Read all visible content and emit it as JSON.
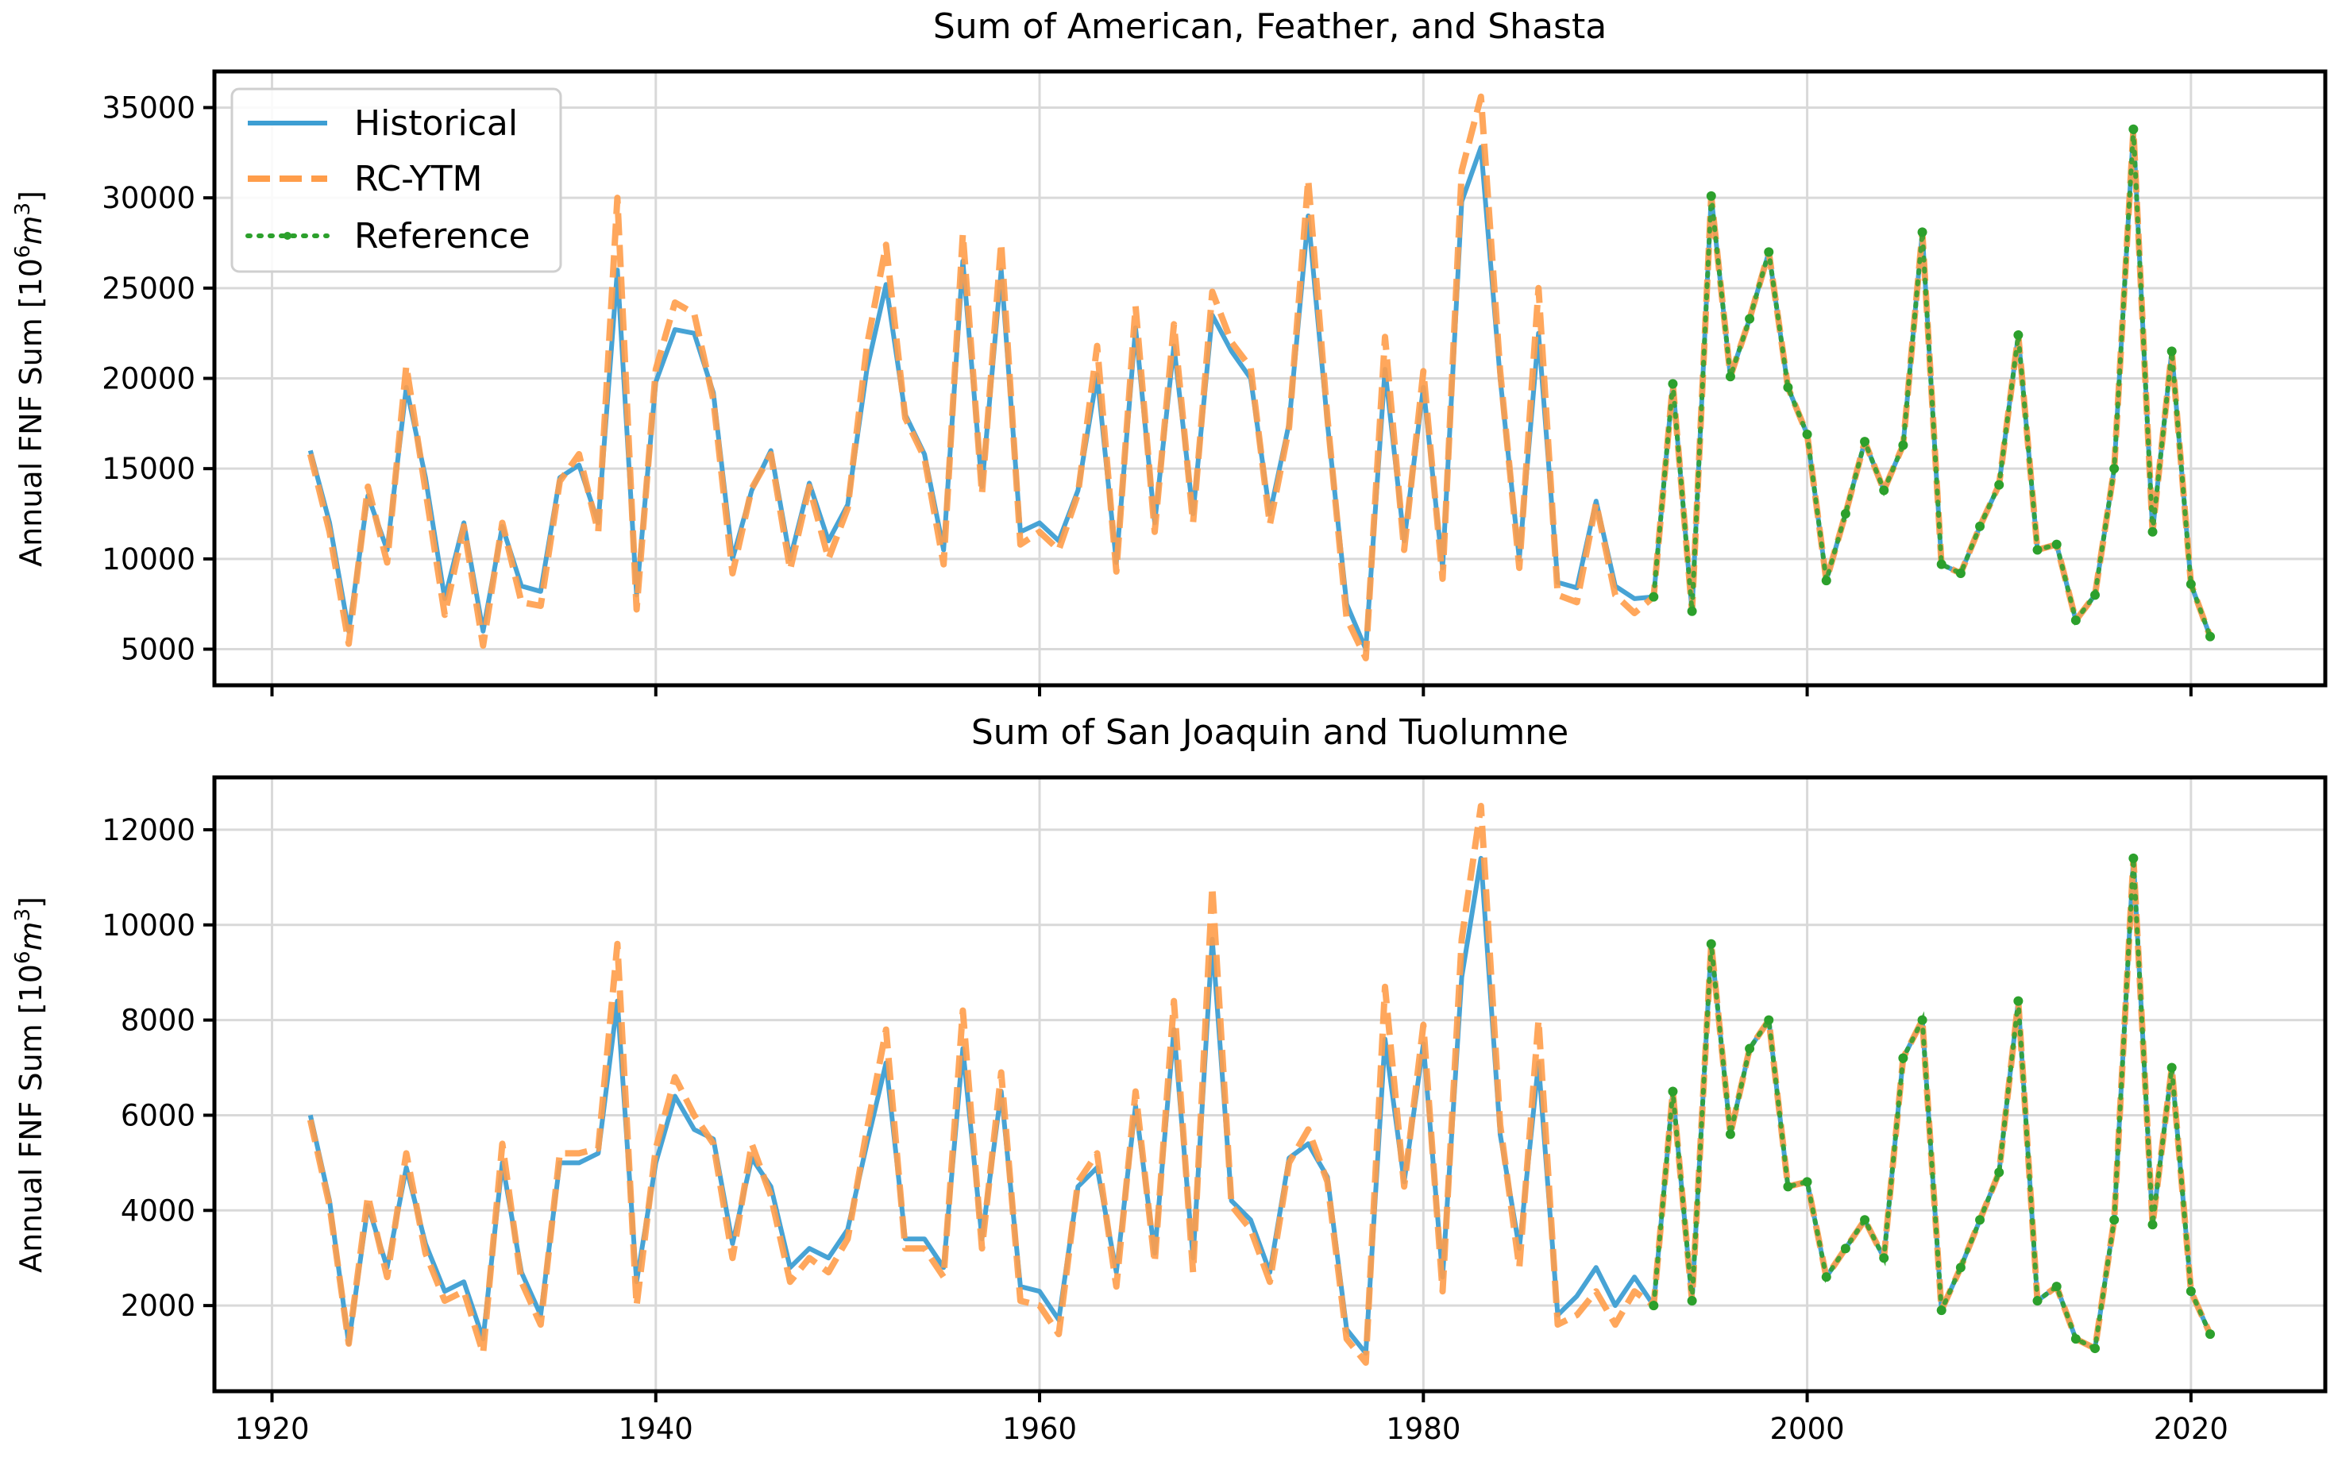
{
  "chart_data": [
    {
      "type": "line",
      "title": "Sum of American, Feather, and Shasta",
      "ylabel": "Annual FNF Sum [10⁶m³]",
      "xlabel": "",
      "xlim": [
        1917,
        2027
      ],
      "ylim": [
        3000,
        37000
      ],
      "xticks": [
        1920,
        1940,
        1960,
        1980,
        2000,
        2020
      ],
      "yticks": [
        5000,
        10000,
        15000,
        20000,
        25000,
        30000,
        35000
      ],
      "show_x_tick_labels": false,
      "grid": true,
      "legend": {
        "placement": "upper-left",
        "entries": [
          "Historical",
          "RC-YTM",
          "Reference"
        ]
      },
      "series": [
        {
          "name": "Historical",
          "color": "#3d9ed3",
          "style": "solid",
          "x": [
            1922,
            1923,
            1924,
            1925,
            1926,
            1927,
            1928,
            1929,
            1930,
            1931,
            1932,
            1933,
            1934,
            1935,
            1936,
            1937,
            1938,
            1939,
            1940,
            1941,
            1942,
            1943,
            1944,
            1945,
            1946,
            1947,
            1948,
            1949,
            1950,
            1951,
            1952,
            1953,
            1954,
            1955,
            1956,
            1957,
            1958,
            1959,
            1960,
            1961,
            1962,
            1963,
            1964,
            1965,
            1966,
            1967,
            1968,
            1969,
            1970,
            1971,
            1972,
            1973,
            1974,
            1975,
            1976,
            1977,
            1978,
            1979,
            1980,
            1981,
            1982,
            1983,
            1984,
            1985,
            1986,
            1987,
            1988,
            1989,
            1990,
            1991,
            1992,
            1993,
            1994,
            1995,
            1996,
            1997,
            1998,
            1999,
            2000,
            2001,
            2002,
            2003,
            2004,
            2005,
            2006,
            2007,
            2008,
            2009,
            2010,
            2011,
            2012,
            2013,
            2014,
            2015,
            2016,
            2017,
            2018,
            2019,
            2020,
            2021
          ],
          "y": [
            16000,
            12000,
            6000,
            13500,
            10500,
            19500,
            14500,
            7800,
            12000,
            6000,
            11800,
            8500,
            8200,
            14500,
            15200,
            12000,
            26000,
            8000,
            19800,
            22700,
            22500,
            19200,
            10000,
            13800,
            16000,
            10000,
            14200,
            11000,
            13000,
            20500,
            25200,
            18000,
            15800,
            10500,
            26500,
            14000,
            26000,
            11500,
            12000,
            11000,
            13800,
            20200,
            9800,
            22800,
            12000,
            21800,
            12500,
            23500,
            21500,
            20000,
            12500,
            17500,
            29000,
            17500,
            7500,
            5000,
            20500,
            11000,
            19500,
            9500,
            29800,
            32800,
            20000,
            10000,
            22500,
            8700,
            8400,
            13200,
            8500,
            7800,
            7900,
            19700,
            7100,
            30100,
            20100,
            23300,
            27000,
            19500,
            16900,
            8800,
            12500,
            16500,
            13800,
            16300,
            28100,
            9700,
            9200,
            11800,
            14100,
            22400,
            10500,
            10800,
            6600,
            8000,
            15000,
            33800,
            11500,
            21500,
            8600,
            5700
          ]
        },
        {
          "name": "RC-YTM",
          "color": "#ff9d4a",
          "style": "dashed",
          "x": [
            1922,
            1923,
            1924,
            1925,
            1926,
            1927,
            1928,
            1929,
            1930,
            1931,
            1932,
            1933,
            1934,
            1935,
            1936,
            1937,
            1938,
            1939,
            1940,
            1941,
            1942,
            1943,
            1944,
            1945,
            1946,
            1947,
            1948,
            1949,
            1950,
            1951,
            1952,
            1953,
            1954,
            1955,
            1956,
            1957,
            1958,
            1959,
            1960,
            1961,
            1962,
            1963,
            1964,
            1965,
            1966,
            1967,
            1968,
            1969,
            1970,
            1971,
            1972,
            1973,
            1974,
            1975,
            1976,
            1977,
            1978,
            1979,
            1980,
            1981,
            1982,
            1983,
            1984,
            1985,
            1986,
            1987,
            1988,
            1989,
            1990,
            1991,
            1992,
            1993,
            1994,
            1995,
            1996,
            1997,
            1998,
            1999,
            2000,
            2001,
            2002,
            2003,
            2004,
            2005,
            2006,
            2007,
            2008,
            2009,
            2010,
            2011,
            2012,
            2013,
            2014,
            2015,
            2016,
            2017,
            2018,
            2019,
            2020,
            2021
          ],
          "y": [
            15800,
            11500,
            5300,
            14000,
            9800,
            20700,
            13800,
            6900,
            11800,
            5200,
            12000,
            7600,
            7400,
            14300,
            15800,
            11500,
            30000,
            7200,
            20500,
            24200,
            23600,
            18800,
            9200,
            13900,
            15800,
            9400,
            14000,
            10000,
            12800,
            21800,
            27400,
            17800,
            15600,
            9700,
            28000,
            13600,
            27500,
            10800,
            11500,
            10500,
            13600,
            21800,
            9300,
            24000,
            11500,
            23000,
            12000,
            24800,
            22000,
            20600,
            11900,
            17300,
            31000,
            17800,
            6700,
            4500,
            22300,
            10500,
            20400,
            8900,
            31500,
            35600,
            20400,
            9500,
            25000,
            8000,
            7600,
            13100,
            8000,
            7000,
            7900,
            19700,
            7100,
            30100,
            20100,
            23300,
            27000,
            19500,
            16900,
            8800,
            12500,
            16500,
            13800,
            16300,
            28100,
            9700,
            9200,
            11800,
            14100,
            22400,
            10500,
            10800,
            6600,
            8000,
            15000,
            33800,
            11500,
            21500,
            8600,
            5700
          ]
        },
        {
          "name": "Reference",
          "color": "#2ca02c",
          "style": "dotted",
          "x": [
            1992,
            1993,
            1994,
            1995,
            1996,
            1997,
            1998,
            1999,
            2000,
            2001,
            2002,
            2003,
            2004,
            2005,
            2006,
            2007,
            2008,
            2009,
            2010,
            2011,
            2012,
            2013,
            2014,
            2015,
            2016,
            2017,
            2018,
            2019,
            2020,
            2021
          ],
          "y": [
            7900,
            19700,
            7100,
            30100,
            20100,
            23300,
            27000,
            19500,
            16900,
            8800,
            12500,
            16500,
            13800,
            16300,
            28100,
            9700,
            9200,
            11800,
            14100,
            22400,
            10500,
            10800,
            6600,
            8000,
            15000,
            33800,
            11500,
            21500,
            8600,
            5700
          ]
        }
      ]
    },
    {
      "type": "line",
      "title": "Sum of San Joaquin and Tuolumne",
      "ylabel": "Annual FNF Sum [10⁶m³]",
      "xlabel": "",
      "xlim": [
        1917,
        2027
      ],
      "ylim": [
        200,
        13100
      ],
      "xticks": [
        1920,
        1940,
        1960,
        1980,
        2000,
        2020
      ],
      "yticks": [
        2000,
        4000,
        6000,
        8000,
        10000,
        12000
      ],
      "show_x_tick_labels": true,
      "grid": true,
      "series": [
        {
          "name": "Historical",
          "color": "#3d9ed3",
          "style": "solid",
          "x": [
            1922,
            1923,
            1924,
            1925,
            1926,
            1927,
            1928,
            1929,
            1930,
            1931,
            1932,
            1933,
            1934,
            1935,
            1936,
            1937,
            1938,
            1939,
            1940,
            1941,
            1942,
            1943,
            1944,
            1945,
            1946,
            1947,
            1948,
            1949,
            1950,
            1951,
            1952,
            1953,
            1954,
            1955,
            1956,
            1957,
            1958,
            1959,
            1960,
            1961,
            1962,
            1963,
            1964,
            1965,
            1966,
            1967,
            1968,
            1969,
            1970,
            1971,
            1972,
            1973,
            1974,
            1975,
            1976,
            1977,
            1978,
            1979,
            1980,
            1981,
            1982,
            1983,
            1984,
            1985,
            1986,
            1987,
            1988,
            1989,
            1990,
            1991,
            1992,
            1993,
            1994,
            1995,
            1996,
            1997,
            1998,
            1999,
            2000,
            2001,
            2002,
            2003,
            2004,
            2005,
            2006,
            2007,
            2008,
            2009,
            2010,
            2011,
            2012,
            2013,
            2014,
            2015,
            2016,
            2017,
            2018,
            2019,
            2020,
            2021
          ],
          "y": [
            6000,
            4200,
            1200,
            4100,
            2800,
            4900,
            3300,
            2300,
            2500,
            1300,
            5000,
            2700,
            1800,
            5000,
            5000,
            5200,
            8400,
            2500,
            5000,
            6400,
            5700,
            5500,
            3300,
            5100,
            4500,
            2800,
            3200,
            3000,
            3600,
            5400,
            7100,
            3400,
            3400,
            2800,
            7400,
            3400,
            6500,
            2400,
            2300,
            1700,
            4500,
            4900,
            2700,
            6200,
            3100,
            7800,
            3000,
            9700,
            4200,
            3800,
            2700,
            5100,
            5400,
            4700,
            1500,
            1000,
            7600,
            4600,
            7500,
            2600,
            8900,
            11400,
            5600,
            3200,
            7100,
            1800,
            2200,
            2800,
            2000,
            2600,
            2000,
            6500,
            2100,
            9600,
            5600,
            7400,
            8000,
            4500,
            4600,
            2600,
            3200,
            3800,
            3000,
            7200,
            8000,
            1900,
            2800,
            3800,
            4800,
            8400,
            2100,
            2400,
            1300,
            1100,
            3800,
            11400,
            3700,
            7000,
            2300,
            1400
          ]
        },
        {
          "name": "RC-YTM",
          "color": "#ff9d4a",
          "style": "dashed",
          "x": [
            1922,
            1923,
            1924,
            1925,
            1926,
            1927,
            1928,
            1929,
            1930,
            1931,
            1932,
            1933,
            1934,
            1935,
            1936,
            1937,
            1938,
            1939,
            1940,
            1941,
            1942,
            1943,
            1944,
            1945,
            1946,
            1947,
            1948,
            1949,
            1950,
            1951,
            1952,
            1953,
            1954,
            1955,
            1956,
            1957,
            1958,
            1959,
            1960,
            1961,
            1962,
            1963,
            1964,
            1965,
            1966,
            1967,
            1968,
            1969,
            1970,
            1971,
            1972,
            1973,
            1974,
            1975,
            1976,
            1977,
            1978,
            1979,
            1980,
            1981,
            1982,
            1983,
            1984,
            1985,
            1986,
            1987,
            1988,
            1989,
            1990,
            1991,
            1992,
            1993,
            1994,
            1995,
            1996,
            1997,
            1998,
            1999,
            2000,
            2001,
            2002,
            2003,
            2004,
            2005,
            2006,
            2007,
            2008,
            2009,
            2010,
            2011,
            2012,
            2013,
            2014,
            2015,
            2016,
            2017,
            2018,
            2019,
            2020,
            2021
          ],
          "y": [
            5900,
            4100,
            1200,
            4300,
            2600,
            5200,
            3100,
            2100,
            2300,
            1000,
            5400,
            2500,
            1600,
            5200,
            5200,
            5300,
            9600,
            2000,
            5300,
            6800,
            6000,
            5400,
            3000,
            5400,
            4300,
            2500,
            3000,
            2700,
            3400,
            5700,
            7800,
            3200,
            3200,
            2600,
            8200,
            3200,
            6900,
            2100,
            2000,
            1400,
            4600,
            5200,
            2400,
            6500,
            2900,
            8400,
            2700,
            10800,
            4100,
            3600,
            2500,
            5000,
            5700,
            4600,
            1300,
            800,
            8700,
            4500,
            7900,
            2300,
            9700,
            12500,
            5800,
            2800,
            8000,
            1600,
            1800,
            2300,
            1600,
            2300,
            2000,
            6500,
            2100,
            9600,
            5600,
            7400,
            8000,
            4500,
            4600,
            2600,
            3200,
            3800,
            3000,
            7200,
            8000,
            1900,
            2800,
            3800,
            4800,
            8400,
            2100,
            2400,
            1300,
            1100,
            3800,
            11400,
            3700,
            7000,
            2300,
            1400
          ]
        },
        {
          "name": "Reference",
          "color": "#2ca02c",
          "style": "dotted",
          "x": [
            1992,
            1993,
            1994,
            1995,
            1996,
            1997,
            1998,
            1999,
            2000,
            2001,
            2002,
            2003,
            2004,
            2005,
            2006,
            2007,
            2008,
            2009,
            2010,
            2011,
            2012,
            2013,
            2014,
            2015,
            2016,
            2017,
            2018,
            2019,
            2020,
            2021
          ],
          "y": [
            2000,
            6500,
            2100,
            9600,
            5600,
            7400,
            8000,
            4500,
            4600,
            2600,
            3200,
            3800,
            3000,
            7200,
            8000,
            1900,
            2800,
            3800,
            4800,
            8400,
            2100,
            2400,
            1300,
            1100,
            3800,
            11400,
            3700,
            7000,
            2300,
            1400
          ]
        }
      ]
    }
  ]
}
